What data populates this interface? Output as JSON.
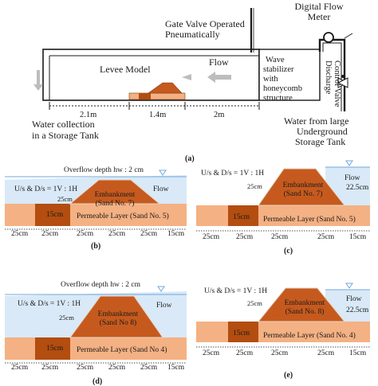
{
  "panel_a": {
    "gate_valve": [
      "Gate Valve Operated",
      "Pneumatically"
    ],
    "digital_flow_meter": [
      "Digital Flow",
      "Meter"
    ],
    "levee_model": "Levee Model",
    "flow": "Flow",
    "wave_stabilizer": [
      "Wave",
      "stabilizer",
      "with",
      "honeycomb",
      "structure"
    ],
    "discharge_control_valve": [
      "Discharge",
      "Control Valve"
    ],
    "dim_1": "2.1m",
    "dim_2": "1.4m",
    "dim_3": "2m",
    "water_collection": [
      "Water collection",
      "in a Storage Tank"
    ],
    "water_from": [
      "Water from large",
      "Underground",
      "Storage Tank"
    ],
    "caption": "(a)"
  },
  "panel_b": {
    "overflow": "Overflow depth hw : 2 cm",
    "slope": "U/s & D/s = 1V : 1H",
    "height": "25cm",
    "embankment": [
      "Embankment",
      "(Sand No. 7)"
    ],
    "flow": "Flow",
    "core": "15cm",
    "permeable": "Permeable Layer (Sand No. 5)",
    "dims": [
      "25cm",
      "25cm",
      "25cm",
      "25cm",
      "25cm",
      "15cm"
    ],
    "caption": "(b)"
  },
  "panel_c": {
    "slope": "U/s & D/s = 1V : 1H",
    "height": "25cm",
    "embankment": [
      "Embankment",
      "(Sand No. 7)"
    ],
    "flow": "Flow",
    "flow_depth": "22.5cm",
    "core": "15cm",
    "permeable": "Permeable Layer (Sand No. 5)",
    "dims": [
      "25cm",
      "25cm",
      "25cm",
      "25cm",
      "15cm"
    ],
    "caption": "(c)"
  },
  "panel_d": {
    "overflow": "Overflow depth hw : 2 cm",
    "slope": "U/s & D/s = 1V : 1H",
    "height": "25cm",
    "embankment": [
      "Embankment",
      "(Sand No 8)"
    ],
    "flow": "Flow",
    "core": "15cm",
    "permeable": "Permeable Layer (Sand No 4)",
    "dims": [
      "25cm",
      "25cm",
      "25cm",
      "25cm",
      "25cm",
      "15cm"
    ],
    "caption": "(d)"
  },
  "panel_e": {
    "slope": "U/s & D/s = 1V : 1H",
    "height": "25cm",
    "embankment": [
      "Embankment",
      "(Sand No. 8)"
    ],
    "flow": "Flow",
    "flow_depth": "22.5cm",
    "core": "15cm",
    "permeable": "Permeable Layer (Sand No. 4)",
    "dims": [
      "25cm",
      "25cm",
      "25cm",
      "25cm",
      "15cm"
    ],
    "caption": "(e)"
  },
  "colors": {
    "embankment": "#c65a1e",
    "core": "#b34d10",
    "permeable": "#f4b183",
    "water": "#d9e9f7",
    "water_line": "#6fa8dc",
    "arrow_grey": "#bdbdbd"
  }
}
